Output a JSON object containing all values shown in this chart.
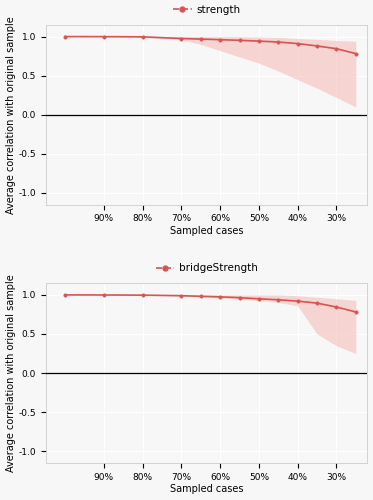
{
  "x_labels": [
    "90%",
    "80%",
    "70%",
    "60%",
    "50%",
    "40%",
    "30%"
  ],
  "x_tick_pos": [
    9,
    8,
    7,
    6,
    5,
    4,
    3
  ],
  "strength_x": [
    10,
    9,
    8,
    7,
    6.5,
    6,
    5.5,
    5,
    4.5,
    4,
    3.5,
    3,
    2.5
  ],
  "strength_mean": [
    1.0,
    0.999,
    0.997,
    0.975,
    0.968,
    0.96,
    0.952,
    0.942,
    0.93,
    0.91,
    0.88,
    0.845,
    0.782
  ],
  "strength_lower": [
    1.0,
    0.998,
    0.99,
    0.96,
    0.9,
    0.82,
    0.74,
    0.66,
    0.56,
    0.45,
    0.34,
    0.22,
    0.1
  ],
  "strength_upper": [
    1.0,
    1.0,
    1.0,
    1.0,
    1.0,
    1.0,
    1.0,
    0.995,
    0.99,
    0.975,
    0.965,
    0.95,
    0.94
  ],
  "bridge_x": [
    10,
    9,
    8,
    7,
    6.5,
    6,
    5.5,
    5,
    4.5,
    4,
    3.5,
    3,
    2.5
  ],
  "bridge_mean": [
    1.0,
    0.999,
    0.997,
    0.99,
    0.982,
    0.975,
    0.965,
    0.95,
    0.938,
    0.92,
    0.895,
    0.845,
    0.782
  ],
  "bridge_lower": [
    1.0,
    0.999,
    0.996,
    0.985,
    0.975,
    0.962,
    0.945,
    0.928,
    0.905,
    0.86,
    0.5,
    0.35,
    0.25
  ],
  "bridge_upper": [
    1.0,
    1.0,
    1.0,
    1.0,
    1.0,
    1.0,
    1.0,
    1.0,
    1.0,
    0.99,
    0.97,
    0.95,
    0.93
  ],
  "line_color": "#d9534f",
  "fill_color": "#f4b8b5",
  "bg_color": "#f7f7f7",
  "grid_color": "#ffffff",
  "zero_line_color": "#000000",
  "ylabel": "Average correlation with original sample",
  "xlabel": "Sampled cases",
  "legend_label_1": "strength",
  "legend_label_2": "bridgeStrength",
  "ylim": [
    -1.15,
    1.15
  ],
  "yticks": [
    -1.0,
    -0.5,
    0.0,
    0.5,
    1.0
  ],
  "xlim": [
    2.2,
    10.5
  ],
  "axis_fontsize": 7,
  "tick_fontsize": 6.5,
  "legend_fontsize": 7.5
}
